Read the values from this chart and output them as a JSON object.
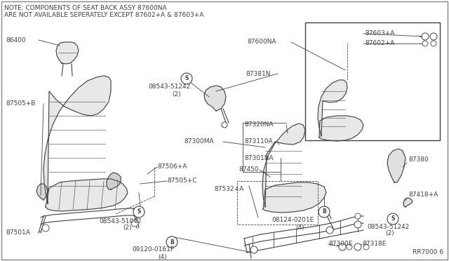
{
  "bg_color": "#FFFFFF",
  "line_color": "#404040",
  "text_color": "#404040",
  "note_line1": "NOTE: COMPONENTS OF SEAT BACK ASSY 87600NA",
  "note_line2": "ARE NOT AVAILABLE SEPERATELY EXCEPT 87602+A & 87603+A",
  "part_number_ref": "RR7000 6",
  "fig_w": 6.4,
  "fig_h": 3.72,
  "dpi": 100
}
